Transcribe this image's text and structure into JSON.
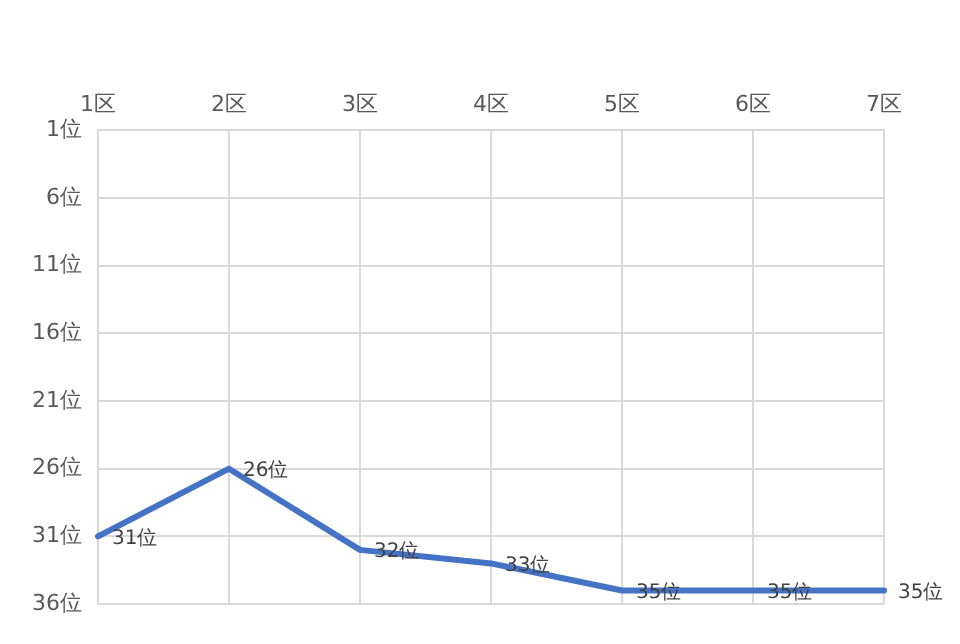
{
  "chart_data": {
    "type": "line",
    "categories": [
      "1区",
      "2区",
      "3区",
      "4区",
      "5区",
      "6区",
      "7区"
    ],
    "series": [
      {
        "color": "#4472c4",
        "values": [
          31,
          26,
          32,
          33,
          35,
          35,
          35
        ],
        "value_labels": [
          "31位",
          "26位",
          "32位",
          "33位",
          "35位",
          "35位",
          "35位"
        ]
      }
    ],
    "ylim": [
      36,
      1
    ],
    "yticks": [
      {
        "value": 1,
        "label": "1位"
      },
      {
        "value": 6,
        "label": "6位"
      },
      {
        "value": 11,
        "label": "11位"
      },
      {
        "value": 16,
        "label": "16位"
      },
      {
        "value": 21,
        "label": "21位"
      },
      {
        "value": 26,
        "label": "26位"
      },
      {
        "value": 31,
        "label": "31位"
      },
      {
        "value": 36,
        "label": "36位"
      }
    ],
    "grid": true,
    "legend": false,
    "marker": "none",
    "line_style": "solid"
  }
}
